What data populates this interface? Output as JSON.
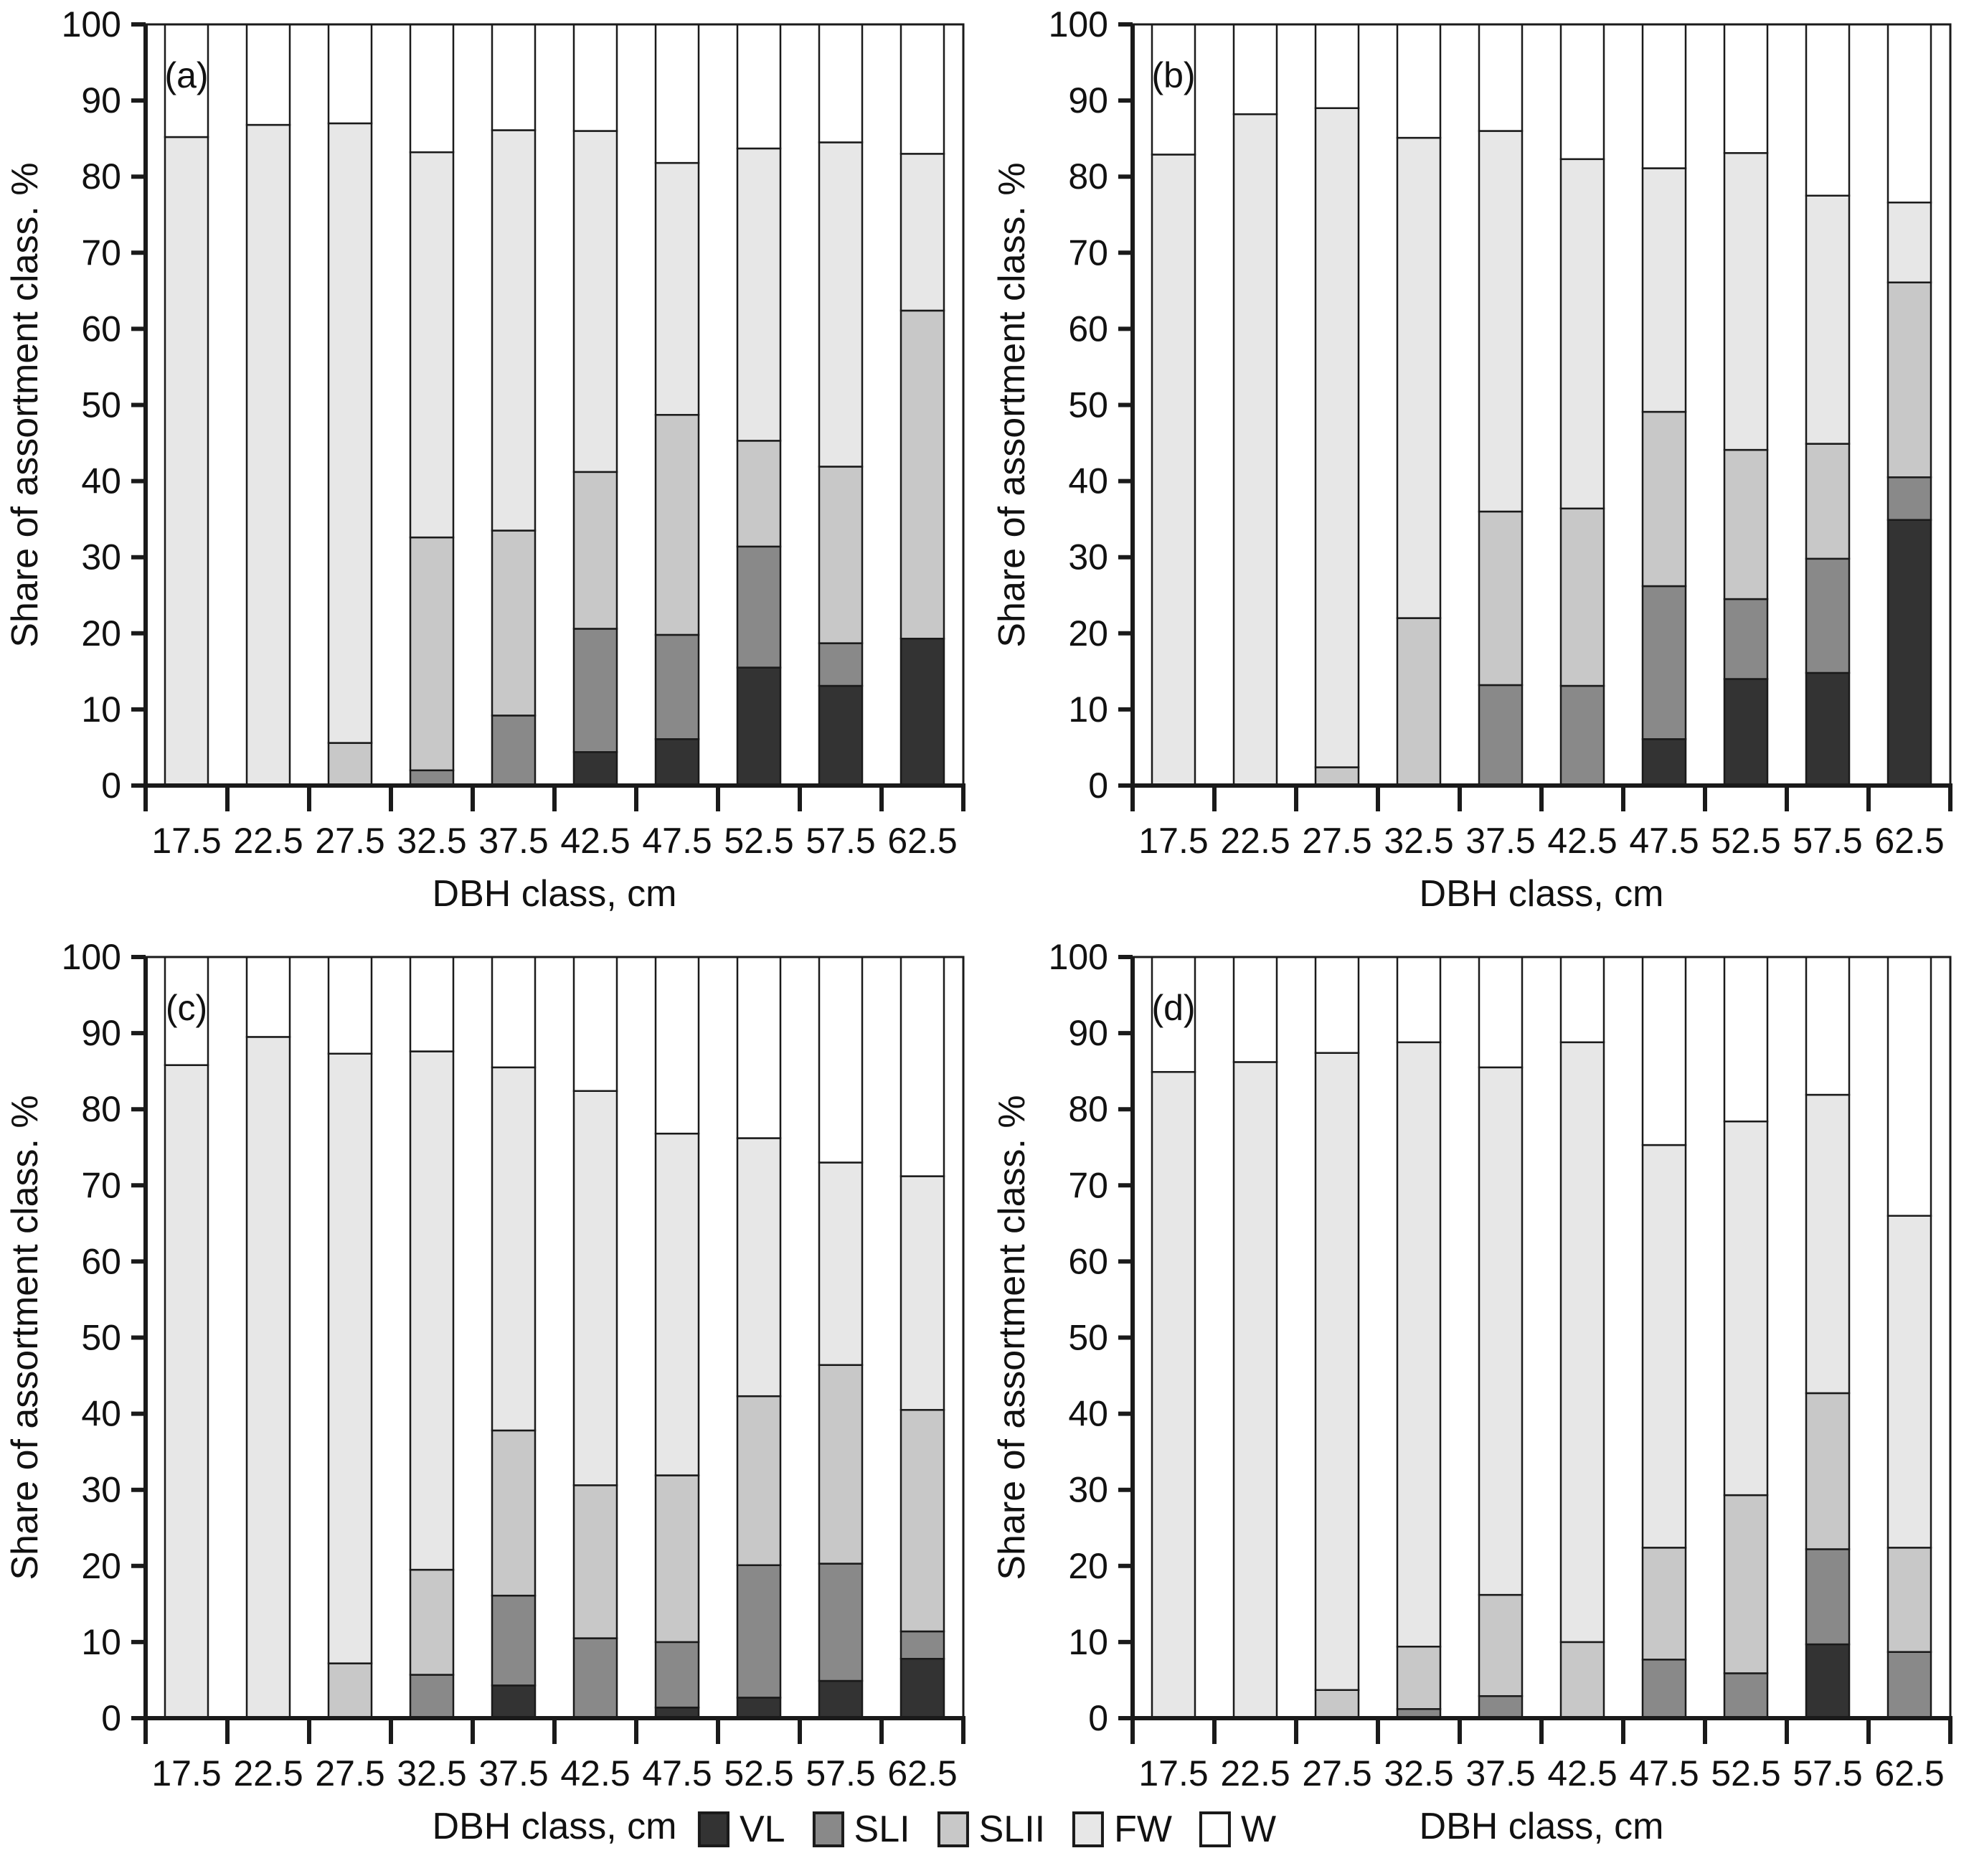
{
  "figure": {
    "background": "#ffffff",
    "text_color": "#111111",
    "outline_color": "#1a1a1a"
  },
  "chart_data": {
    "type": "bar",
    "stacked": true,
    "orientation": "vertical",
    "categories": [
      "17.5",
      "22.5",
      "27.5",
      "32.5",
      "37.5",
      "42.5",
      "47.5",
      "52.5",
      "57.5",
      "62.5"
    ],
    "xlabel": "DBH class, cm",
    "ylabel": "Share of assortment class. %",
    "ylim": [
      0,
      100
    ],
    "yticks": [
      0,
      10,
      20,
      30,
      40,
      50,
      60,
      70,
      80,
      90,
      100
    ],
    "grid": false,
    "legend_position": "bottom-center",
    "legend": [
      {
        "name": "VL",
        "color": "#333333"
      },
      {
        "name": "SLI",
        "color": "#898989"
      },
      {
        "name": "SLII",
        "color": "#c8c8c8"
      },
      {
        "name": "FW",
        "color": "#e7e7e7"
      },
      {
        "name": "W",
        "color": "#ffffff"
      }
    ],
    "panels": [
      {
        "label": "(a)",
        "series": [
          {
            "name": "VL",
            "values": [
              0,
              0,
              0,
              0,
              0,
              4.4,
              6.1,
              15.5,
              13.1,
              19.3
            ]
          },
          {
            "name": "SLI",
            "values": [
              0,
              0,
              0,
              2.0,
              9.2,
              16.2,
              13.7,
              15.9,
              5.6,
              0
            ]
          },
          {
            "name": "SLII",
            "values": [
              0,
              0,
              5.6,
              30.6,
              24.3,
              20.6,
              28.9,
              13.9,
              23.2,
              43.1
            ]
          },
          {
            "name": "FW",
            "values": [
              85.2,
              86.8,
              81.4,
              50.6,
              52.6,
              44.8,
              33.1,
              38.4,
              42.6,
              20.6
            ]
          },
          {
            "name": "W",
            "values": [
              14.8,
              13.2,
              13.0,
              16.8,
              13.9,
              14.0,
              18.2,
              16.3,
              15.5,
              17.0
            ]
          }
        ]
      },
      {
        "label": "(b)",
        "series": [
          {
            "name": "VL",
            "values": [
              0,
              0,
              0,
              0,
              0,
              0,
              6.1,
              14.0,
              14.8,
              34.9
            ]
          },
          {
            "name": "SLI",
            "values": [
              0,
              0,
              0,
              0,
              13.2,
              13.1,
              20.1,
              10.5,
              15.0,
              5.6
            ]
          },
          {
            "name": "SLII",
            "values": [
              0,
              0,
              2.4,
              22.0,
              22.8,
              23.3,
              22.9,
              19.6,
              15.1,
              25.6
            ]
          },
          {
            "name": "FW",
            "values": [
              82.9,
              88.2,
              86.6,
              63.1,
              50.0,
              45.9,
              32.0,
              39.0,
              32.6,
              10.5
            ]
          },
          {
            "name": "W",
            "values": [
              17.1,
              11.8,
              11.0,
              14.9,
              14.0,
              17.7,
              18.9,
              16.9,
              22.5,
              23.4
            ]
          }
        ]
      },
      {
        "label": "(c)",
        "series": [
          {
            "name": "VL",
            "values": [
              0,
              0,
              0,
              0,
              4.3,
              0,
              1.4,
              2.7,
              4.9,
              7.8
            ]
          },
          {
            "name": "SLI",
            "values": [
              0,
              0,
              0,
              5.7,
              11.8,
              10.5,
              8.6,
              17.4,
              15.4,
              3.6
            ]
          },
          {
            "name": "SLII",
            "values": [
              0,
              0,
              7.2,
              13.8,
              21.7,
              20.1,
              21.9,
              22.2,
              26.1,
              29.1
            ]
          },
          {
            "name": "FW",
            "values": [
              85.8,
              89.5,
              80.1,
              68.1,
              47.7,
              51.8,
              44.9,
              33.9,
              26.6,
              30.7
            ]
          },
          {
            "name": "W",
            "values": [
              14.2,
              10.5,
              12.7,
              12.4,
              14.5,
              17.6,
              23.2,
              23.8,
              27.0,
              28.8
            ]
          }
        ]
      },
      {
        "label": "(d)",
        "series": [
          {
            "name": "VL",
            "values": [
              0,
              0,
              0,
              0,
              0,
              0,
              0,
              0,
              9.7,
              0
            ]
          },
          {
            "name": "SLI",
            "values": [
              0,
              0,
              0,
              1.2,
              2.9,
              0,
              7.7,
              5.9,
              12.5,
              8.7
            ]
          },
          {
            "name": "SLII",
            "values": [
              0,
              0,
              3.7,
              8.2,
              13.3,
              10.0,
              14.7,
              23.4,
              20.5,
              13.7
            ]
          },
          {
            "name": "FW",
            "values": [
              84.9,
              86.2,
              83.7,
              79.4,
              69.3,
              78.8,
              52.9,
              49.1,
              39.2,
              43.6
            ]
          },
          {
            "name": "W",
            "values": [
              15.1,
              13.8,
              12.6,
              11.2,
              14.5,
              11.2,
              24.7,
              21.6,
              18.1,
              34.0
            ]
          }
        ]
      }
    ]
  }
}
